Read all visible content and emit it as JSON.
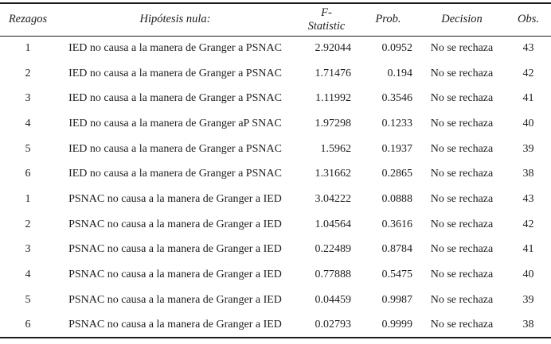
{
  "table": {
    "columns": [
      {
        "id": "rezagos",
        "label": "Rezagos"
      },
      {
        "id": "hipotesis",
        "label": "Hipótesis nula:"
      },
      {
        "id": "fstat",
        "label_line1": "F-",
        "label_line2": "Statistic"
      },
      {
        "id": "prob",
        "label": "Prob."
      },
      {
        "id": "decision",
        "label": "Decision"
      },
      {
        "id": "obs",
        "label": "Obs."
      }
    ],
    "rows": [
      {
        "rezagos": "1",
        "hipotesis": "IED no causa a la manera de Granger a PSNAC",
        "fstat": "2.92044",
        "prob": "0.0952",
        "decision": "No se rechaza",
        "obs": "43"
      },
      {
        "rezagos": "2",
        "hipotesis": "IED no causa a la manera de Granger a PSNAC",
        "fstat": "1.71476",
        "prob": "0.194",
        "decision": "No se rechaza",
        "obs": "42"
      },
      {
        "rezagos": "3",
        "hipotesis": "IED no causa a la manera de Granger a PSNAC",
        "fstat": "1.11992",
        "prob": "0.3546",
        "decision": "No se rechaza",
        "obs": "41"
      },
      {
        "rezagos": "4",
        "hipotesis": "IED no causa a la manera de Granger aP SNAC",
        "fstat": "1.97298",
        "prob": "0.1233",
        "decision": "No se rechaza",
        "obs": "40"
      },
      {
        "rezagos": "5",
        "hipotesis": "IED no causa a la manera de Granger a PSNAC",
        "fstat": "1.5962",
        "prob": "0.1937",
        "decision": "No se rechaza",
        "obs": "39"
      },
      {
        "rezagos": "6",
        "hipotesis": "IED no causa a la manera de Granger a PSNAC",
        "fstat": "1.31662",
        "prob": "0.2865",
        "decision": "No se rechaza",
        "obs": "38"
      },
      {
        "rezagos": "1",
        "hipotesis": "PSNAC no causa a la manera de Granger a IED",
        "fstat": "3.04222",
        "prob": "0.0888",
        "decision": "No se rechaza",
        "obs": "43"
      },
      {
        "rezagos": "2",
        "hipotesis": "PSNAC no causa a la manera de Granger a IED",
        "fstat": "1.04564",
        "prob": "0.3616",
        "decision": "No se rechaza",
        "obs": "42"
      },
      {
        "rezagos": "3",
        "hipotesis": "PSNAC no causa a la manera de Granger a IED",
        "fstat": "0.22489",
        "prob": "0.8784",
        "decision": "No se rechaza",
        "obs": "41"
      },
      {
        "rezagos": "4",
        "hipotesis": "PSNAC no causa a la manera de Granger a IED",
        "fstat": "0.77888",
        "prob": "0.5475",
        "decision": "No se rechaza",
        "obs": "40"
      },
      {
        "rezagos": "5",
        "hipotesis": "PSNAC no causa a la manera de Granger a IED",
        "fstat": "0.04459",
        "prob": "0.9987",
        "decision": "No se rechaza",
        "obs": "39"
      },
      {
        "rezagos": "6",
        "hipotesis": "PSNAC no causa a la manera de Granger a IED",
        "fstat": "0.02793",
        "prob": "0.9999",
        "decision": "No se rechaza",
        "obs": "38"
      }
    ]
  }
}
